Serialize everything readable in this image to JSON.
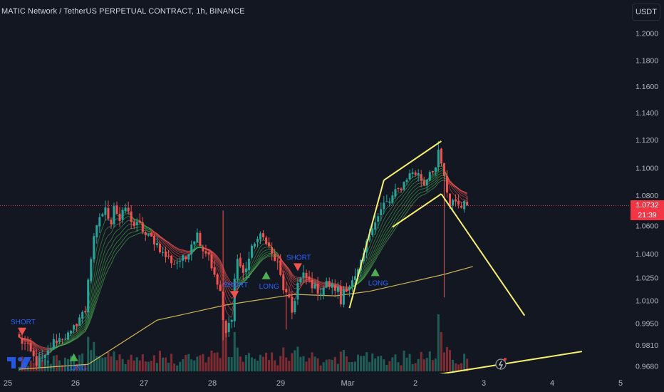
{
  "header": {
    "title": "MATIC Network / TetherUS PERPETUAL CONTRACT, 1h, BINANCE",
    "currency": "USDT"
  },
  "last_price": {
    "value": "1.0732",
    "countdown": "21:39"
  },
  "colors": {
    "background": "#131722",
    "up": "#26a69a",
    "down": "#ef5350",
    "volume_up": "#1f5d57",
    "volume_down": "#7e2c33",
    "ribbon_up": "#4caf50",
    "ribbon_down": "#ef5350",
    "slow_ma": "#f0d060",
    "drawing": "#f7f06e",
    "signal_text": "#2962ff",
    "price_line": "#f23645"
  },
  "chart_data": {
    "type": "candlestick",
    "title": "MATIC Network / TetherUS PERPETUAL CONTRACT, 1h, BINANCE",
    "interval": "1h",
    "y_axis": {
      "unit": "USDT",
      "range": [
        0.962,
        1.222
      ],
      "ticks": [
        "1.2000",
        "1.1800",
        "1.1600",
        "1.1400",
        "1.1200",
        "1.1000",
        "1.0800",
        "1.0600",
        "1.0400",
        "1.0250",
        "1.0100",
        "0.9950",
        "0.9810",
        "0.9680"
      ]
    },
    "x_axis": {
      "ticks": [
        "25",
        "26",
        "27",
        "28",
        "29",
        "Mar",
        "2",
        "3",
        "4",
        "5"
      ]
    },
    "close_path": [
      [
        0,
        0.985
      ],
      [
        3,
        0.979
      ],
      [
        6,
        0.97
      ],
      [
        9,
        0.973
      ],
      [
        12,
        0.983
      ],
      [
        15,
        0.986
      ],
      [
        18,
        0.988
      ],
      [
        21,
        0.999
      ],
      [
        23,
        1.003
      ],
      [
        24,
        1.025
      ],
      [
        26,
        1.05
      ],
      [
        28,
        1.066
      ],
      [
        30,
        1.07
      ],
      [
        32,
        1.063
      ],
      [
        33,
        1.074
      ],
      [
        35,
        1.063
      ],
      [
        37,
        1.072
      ],
      [
        40,
        1.06
      ],
      [
        42,
        1.06
      ],
      [
        44,
        1.053
      ],
      [
        46,
        1.051
      ],
      [
        48,
        1.047
      ],
      [
        50,
        1.04
      ],
      [
        52,
        1.037
      ],
      [
        54,
        1.034
      ],
      [
        56,
        1.036
      ],
      [
        58,
        1.037
      ],
      [
        60,
        1.048
      ],
      [
        62,
        1.054
      ],
      [
        64,
        1.043
      ],
      [
        66,
        1.04
      ],
      [
        68,
        1.025
      ],
      [
        70,
        1.016
      ],
      [
        71,
        0.995
      ],
      [
        72,
        0.988
      ],
      [
        74,
        1.0
      ],
      [
        75,
        1.024
      ],
      [
        76,
        1.037
      ],
      [
        78,
        1.027
      ],
      [
        80,
        1.037
      ],
      [
        82,
        1.049
      ],
      [
        84,
        1.052
      ],
      [
        86,
        1.05
      ],
      [
        88,
        1.039
      ],
      [
        90,
        1.033
      ],
      [
        92,
        1.018
      ],
      [
        94,
        1.009
      ],
      [
        95,
        1.002
      ],
      [
        97,
        1.021
      ],
      [
        99,
        1.026
      ],
      [
        101,
        1.023
      ],
      [
        103,
        1.018
      ],
      [
        105,
        1.016
      ],
      [
        107,
        1.021
      ],
      [
        109,
        1.019
      ],
      [
        111,
        1.017
      ],
      [
        112,
        1.008
      ],
      [
        113,
        1.018
      ],
      [
        115,
        1.02
      ],
      [
        117,
        1.024
      ],
      [
        119,
        1.033
      ],
      [
        121,
        1.047
      ],
      [
        123,
        1.061
      ],
      [
        125,
        1.066
      ],
      [
        127,
        1.074
      ],
      [
        129,
        1.076
      ],
      [
        131,
        1.082
      ],
      [
        133,
        1.086
      ],
      [
        135,
        1.093
      ],
      [
        137,
        1.097
      ],
      [
        139,
        1.095
      ],
      [
        141,
        1.088
      ],
      [
        143,
        1.098
      ],
      [
        145,
        1.1
      ],
      [
        146,
        1.11
      ],
      [
        148,
        1.094
      ],
      [
        149,
        1.08
      ],
      [
        150,
        1.071
      ],
      [
        151,
        1.078
      ],
      [
        153,
        1.074
      ],
      [
        155,
        1.074
      ],
      [
        156,
        1.073
      ]
    ],
    "slow_ma_path": [
      [
        0,
        0.966
      ],
      [
        24,
        0.969
      ],
      [
        48,
        0.997
      ],
      [
        72,
        1.007
      ],
      [
        96,
        1.014
      ],
      [
        110,
        1.013
      ],
      [
        122,
        1.016
      ],
      [
        136,
        1.022
      ],
      [
        148,
        1.027
      ],
      [
        158,
        1.032
      ]
    ],
    "signals": [
      {
        "label": "SHORT",
        "type": "short",
        "x": 1,
        "price": 0.988
      },
      {
        "label": "LONG",
        "type": "long",
        "x": 19,
        "price": 0.975
      },
      {
        "label": "SHORT",
        "type": "short",
        "x": 75,
        "price": 1.012
      },
      {
        "label": "LONG",
        "type": "long",
        "x": 86,
        "price": 1.028
      },
      {
        "label": "SHORT",
        "type": "short",
        "x": 97,
        "price": 1.03
      },
      {
        "label": "LONG",
        "type": "long",
        "x": 124,
        "price": 1.03
      }
    ],
    "drawings": [
      {
        "points": [
          [
            115,
            1.005
          ],
          [
            127,
            1.091
          ]
        ]
      },
      {
        "points": [
          [
            127,
            1.091
          ],
          [
            147,
            1.119
          ]
        ]
      },
      {
        "points": [
          [
            130,
            1.059
          ],
          [
            147,
            1.081
          ]
        ]
      },
      {
        "points": [
          [
            147,
            1.081
          ],
          [
            176,
            1.0
          ]
        ]
      },
      {
        "points": [
          [
            143,
            0.962
          ],
          [
            196,
            0.977
          ]
        ]
      }
    ],
    "last_price": 1.0732
  }
}
